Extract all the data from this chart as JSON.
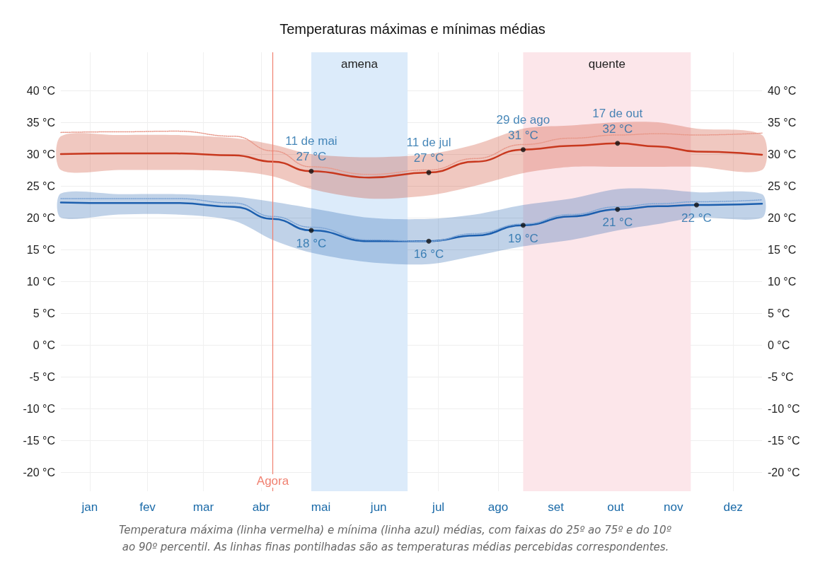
{
  "chart_data": {
    "type": "line",
    "title": "Temperaturas máximas e mínimas médias",
    "x": [
      "--01-01",
      "--01-31",
      "--03-02",
      "--04-01",
      "--04-21",
      "--05-11",
      "--06-10",
      "--07-11",
      "--08-04",
      "--08-29",
      "--09-23",
      "--10-17",
      "--11-07",
      "--11-27",
      "--12-31"
    ],
    "xlim": [
      "--01-01",
      "--12-31"
    ],
    "xticks": [
      {
        "value": "--01-16",
        "label": "jan"
      },
      {
        "value": "--02-15",
        "label": "fev"
      },
      {
        "value": "--03-16",
        "label": "mar"
      },
      {
        "value": "--04-15",
        "label": "abr"
      },
      {
        "value": "--05-16",
        "label": "mai"
      },
      {
        "value": "--06-15",
        "label": "jun"
      },
      {
        "value": "--07-16",
        "label": "jul"
      },
      {
        "value": "--08-16",
        "label": "ago"
      },
      {
        "value": "--09-15",
        "label": "set"
      },
      {
        "value": "--10-16",
        "label": "out"
      },
      {
        "value": "--11-15",
        "label": "nov"
      },
      {
        "value": "--12-16",
        "label": "dez"
      }
    ],
    "ylim": [
      -23,
      46
    ],
    "yticks": [
      {
        "value": -20,
        "label": "-20 °C"
      },
      {
        "value": -15,
        "label": "-15 °C"
      },
      {
        "value": -10,
        "label": "-10 °C"
      },
      {
        "value": -5,
        "label": "-5 °C"
      },
      {
        "value": 0,
        "label": "0 °C"
      },
      {
        "value": 5,
        "label": "5 °C"
      },
      {
        "value": 10,
        "label": "10 °C"
      },
      {
        "value": 15,
        "label": "15 °C"
      },
      {
        "value": 20,
        "label": "20 °C"
      },
      {
        "value": 25,
        "label": "25 °C"
      },
      {
        "value": 30,
        "label": "30 °C"
      },
      {
        "value": 35,
        "label": "35 °C"
      },
      {
        "value": 40,
        "label": "40 °C"
      }
    ],
    "y2lim": [
      -23,
      46
    ],
    "y2ticks": [
      {
        "value": -20,
        "label": "-20 °C"
      },
      {
        "value": -15,
        "label": "-15 °C"
      },
      {
        "value": -10,
        "label": "-10 °C"
      },
      {
        "value": -5,
        "label": "-5 °C"
      },
      {
        "value": 0,
        "label": "0 °C"
      },
      {
        "value": 5,
        "label": "5 °C"
      },
      {
        "value": 10,
        "label": "10 °C"
      },
      {
        "value": 15,
        "label": "15 °C"
      },
      {
        "value": 20,
        "label": "20 °C"
      },
      {
        "value": 25,
        "label": "25 °C"
      },
      {
        "value": 30,
        "label": "30 °C"
      },
      {
        "value": 35,
        "label": "35 °C"
      },
      {
        "value": 40,
        "label": "40 °C"
      }
    ],
    "series": [
      {
        "color": "#c8381e",
        "values": [
          30.0,
          30.1,
          30.1,
          29.8,
          28.8,
          27.3,
          26.3,
          27.1,
          28.8,
          30.7,
          31.3,
          31.7,
          31.2,
          30.4,
          29.9
        ],
        "lower": [
          27.5,
          27.5,
          27.5,
          27.3,
          26.5,
          24.5,
          23.0,
          23.5,
          25.0,
          27.0,
          28.0,
          28.0,
          28.0,
          28.0,
          27.5
        ],
        "upper": [
          32.8,
          33.0,
          33.0,
          32.5,
          31.5,
          30.0,
          29.5,
          30.0,
          31.5,
          34.0,
          34.5,
          35.0,
          35.0,
          34.0,
          33.0
        ]
      },
      {
        "color": "#1c5fae",
        "values": [
          22.4,
          22.3,
          22.3,
          21.7,
          19.8,
          18.0,
          16.3,
          16.3,
          17.2,
          18.8,
          20.2,
          21.3,
          21.8,
          22.0,
          22.2
        ],
        "lower": [
          20.0,
          20.5,
          20.5,
          19.5,
          16.5,
          14.5,
          13.0,
          12.7,
          14.0,
          15.5,
          16.5,
          18.0,
          19.0,
          20.0,
          20.0
        ],
        "upper": [
          23.8,
          23.7,
          23.7,
          23.3,
          22.5,
          21.5,
          20.0,
          19.8,
          20.5,
          22.0,
          23.0,
          24.5,
          24.5,
          24.0,
          23.7
        ]
      },
      {
        "color": "#e89a8c",
        "line_style": "dotted",
        "values": [
          33.4,
          33.5,
          33.6,
          32.8,
          30.5,
          28.0,
          26.8,
          27.5,
          29.3,
          31.5,
          32.5,
          33.0,
          33.2,
          33.0,
          33.3
        ]
      },
      {
        "color": "#7fa6d6",
        "line_style": "dotted",
        "values": [
          23.0,
          23.0,
          23.0,
          22.3,
          20.2,
          18.5,
          16.5,
          16.3,
          17.5,
          19.0,
          20.5,
          21.7,
          22.2,
          22.5,
          22.8
        ]
      }
    ],
    "bands": [
      {
        "axis": "x",
        "from": "--05-11",
        "to": "--06-30",
        "label": "amena",
        "color": "#dcebfa"
      },
      {
        "axis": "x",
        "from": "--08-29",
        "to": "--11-24",
        "label": "quente",
        "color": "#fce6ea"
      }
    ],
    "ref_lines": [
      {
        "axis": "x",
        "value": "--04-21",
        "label": "Agora",
        "color": "#f08070"
      }
    ],
    "annotations": [
      {
        "text": "11 de mai\n27 °C",
        "x": "--05-11",
        "y": 27.3
      },
      {
        "text": "11 de jul\n27 °C",
        "x": "--07-11",
        "y": 27.1
      },
      {
        "text": "29 de ago\n31 °C",
        "x": "--08-29",
        "y": 30.7
      },
      {
        "text": "17 de out\n32 °C",
        "x": "--10-17",
        "y": 31.7
      },
      {
        "text": "18 °C",
        "x": "--05-11",
        "y": 18.0
      },
      {
        "text": "16 °C",
        "x": "--07-11",
        "y": 16.3
      },
      {
        "text": "19 °C",
        "x": "--08-29",
        "y": 18.8
      },
      {
        "text": "21 °C",
        "x": "--10-17",
        "y": 21.3
      },
      {
        "text": "22 °C",
        "x": "--11-27",
        "y": 22.0
      },
      "Temperatura máxima (linha vermelha) e mínima (linha azul) médias, com faixas do 25º ao 75º e do 10º ao 90º percentil. As linhas finas pontilhadas são as temperaturas médias percebidas correspondentes."
    ],
    "grid": true,
    "marker": "none"
  }
}
